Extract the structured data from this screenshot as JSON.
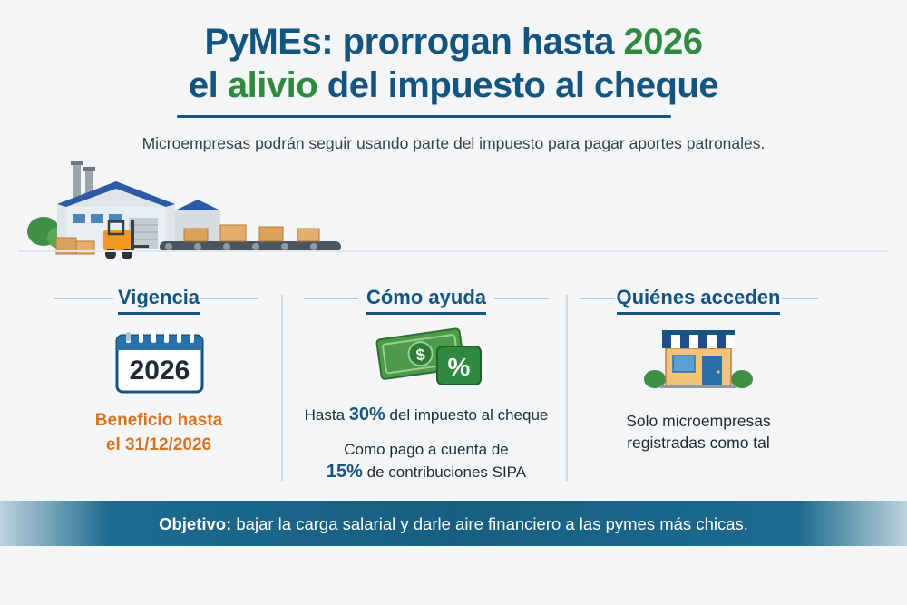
{
  "title": {
    "line1_a": "PyMEs: prorrogan hasta ",
    "line1_b": "2026",
    "line2_a": "el ",
    "line2_b": "alivio",
    "line2_c": " del impuesto al cheque"
  },
  "subtitle": "Microempresas podrán seguir usando parte del impuesto para pagar aportes patronales.",
  "columns": {
    "vigencia": {
      "heading": "Vigencia",
      "calendar_year": "2026",
      "benefit_line1": "Beneficio hasta",
      "benefit_line2": "el 31/12/2026"
    },
    "como_ayuda": {
      "heading": "Cómo ayuda",
      "pct_symbol": "%",
      "line1_a": "Hasta ",
      "line1_b": "30%",
      "line1_c": " del impuesto al cheque",
      "line2": "Como pago a cuenta de",
      "line3_a": "15%",
      "line3_b": " de contribuciones SIPA"
    },
    "quienes_acceden": {
      "heading": "Quiénes acceden",
      "line1": "Solo microempresas",
      "line2": "registradas como tal"
    }
  },
  "banner": {
    "label": "Objetivo:",
    "text": " bajar la carga salarial y darle aire financiero a las pymes más chicas."
  },
  "colors": {
    "primary": "#14557f",
    "green": "#2f8a3f",
    "orange": "#d8731c",
    "banner": "#1d6b8f"
  },
  "icons": [
    "factory-icon",
    "forklift-icon",
    "conveyor-icon",
    "calendar-icon",
    "money-icon",
    "percent-badge-icon",
    "storefront-icon"
  ]
}
